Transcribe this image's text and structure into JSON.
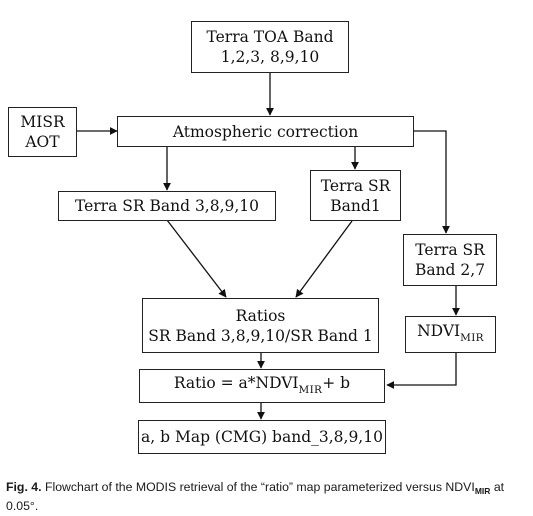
{
  "boxes": {
    "toa": {
      "line1": "Terra TOA Band",
      "line2": "1,2,3, 8,9,10"
    },
    "misr": {
      "line1": "MISR",
      "line2": "AOT"
    },
    "atm": {
      "label": "Atmospheric correction"
    },
    "sr38910": {
      "label": "Terra SR Band 3,8,9,10"
    },
    "sr1": {
      "line1": "Terra SR",
      "line2": "Band1"
    },
    "sr27": {
      "line1": "Terra SR",
      "line2": "Band 2,7"
    },
    "ratios": {
      "line1": "Ratios",
      "line2": "SR Band 3,8,9,10/SR Band 1"
    },
    "ndvi": {
      "main": "NDVI",
      "sub": "MIR"
    },
    "ratio_eq": {
      "pre": "Ratio = a*NDVI",
      "sub": "MIR",
      "post": "+ b"
    },
    "map": {
      "label": "a, b Map (CMG) band_3,8,9,10"
    }
  },
  "caption": {
    "fig": "Fig. 4.",
    "text": " Flowchart of the MODIS retrieval of the “ratio” map parameterized versus NDVI",
    "sub": "MIR",
    "text2": " at 0.05°."
  }
}
